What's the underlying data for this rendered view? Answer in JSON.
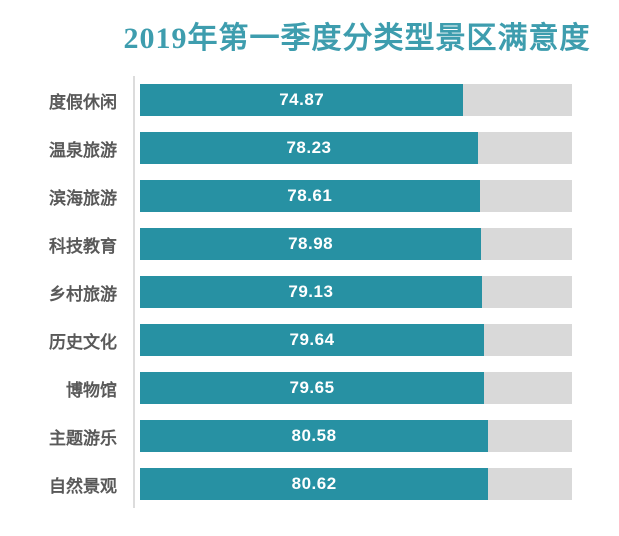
{
  "title": "2019年第一季度分类型景区满意度",
  "colors": {
    "title": "#3E9DAE",
    "bar": "#2791A3",
    "track": "#D9D9D9",
    "label": "#595959",
    "value": "#FFFFFF",
    "axis": "#DCDCDC",
    "background": "#FFFFFF"
  },
  "chart_data": {
    "type": "bar",
    "orientation": "horizontal",
    "title": "2019年第一季度分类型景区满意度",
    "categories": [
      "度假休闲",
      "温泉旅游",
      "滨海旅游",
      "科技教育",
      "乡村旅游",
      "历史文化",
      "博物馆",
      "主题游乐",
      "自然景观"
    ],
    "values": [
      74.87,
      78.23,
      78.61,
      78.98,
      79.13,
      79.64,
      79.65,
      80.58,
      80.62
    ],
    "value_labels": [
      "74.87",
      "78.23",
      "78.61",
      "78.98",
      "79.13",
      "79.64",
      "79.65",
      "80.58",
      "80.62"
    ],
    "xlim": [
      0,
      100
    ],
    "value_labels_shown": true,
    "value_label_position": "center-of-bar",
    "grid": false,
    "legend": false,
    "sort_order": "ascending-top-to-bottom-none (as shown)"
  }
}
